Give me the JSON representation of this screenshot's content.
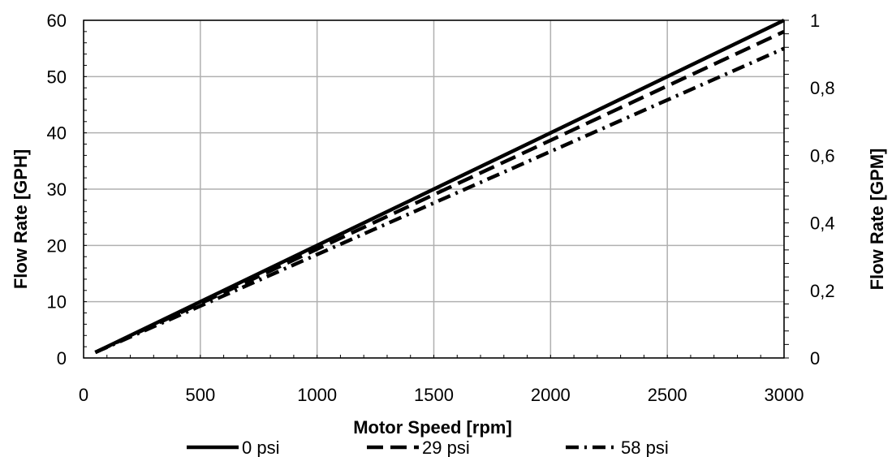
{
  "chart_data": {
    "type": "line",
    "xlabel": "Motor Speed [rpm]",
    "ylabel": "Flow Rate [GPH]",
    "y2label": "Flow Rate [GPM]",
    "xlim": [
      0,
      3000
    ],
    "ylim": [
      0,
      60
    ],
    "y2lim": [
      0,
      1
    ],
    "x_ticks": [
      "0",
      "500",
      "1000",
      "1500",
      "2000",
      "2500",
      "3000"
    ],
    "y_ticks": [
      "0",
      "10",
      "20",
      "30",
      "40",
      "50",
      "60"
    ],
    "y2_ticks": [
      "0",
      "0,2",
      "0,4",
      "0,6",
      "0,8",
      "1"
    ],
    "grid": true,
    "legend_position": "bottom",
    "series": [
      {
        "name": "0 psi",
        "style": "solid",
        "x": [
          50,
          3000
        ],
        "y": [
          1,
          60
        ]
      },
      {
        "name": "29 psi",
        "style": "dashed",
        "x": [
          50,
          3000
        ],
        "y": [
          1,
          58
        ]
      },
      {
        "name": "58 psi",
        "style": "dash-dot",
        "x": [
          50,
          3000
        ],
        "y": [
          1,
          55
        ]
      }
    ]
  }
}
